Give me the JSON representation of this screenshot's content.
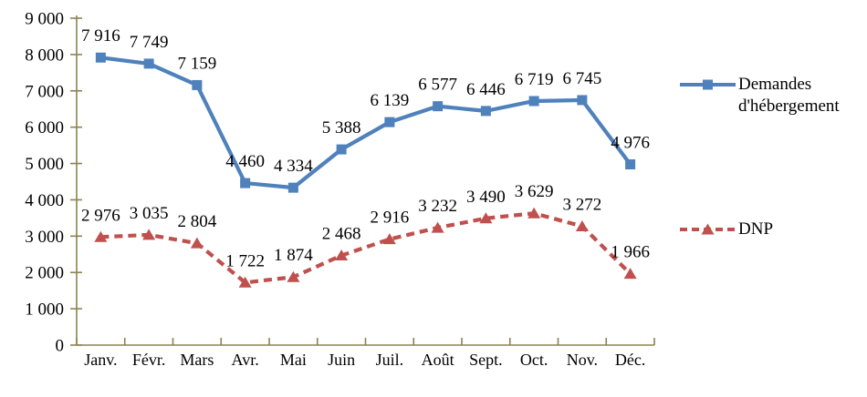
{
  "chart_data": {
    "type": "line",
    "title": "",
    "xlabel": "",
    "ylabel": "",
    "categories": [
      "Janv.",
      "Févr.",
      "Mars",
      "Avr.",
      "Mai",
      "Juin",
      "Juil.",
      "Août",
      "Sept.",
      "Oct.",
      "Nov.",
      "Déc."
    ],
    "series": [
      {
        "name": "Demandes d'hébergement",
        "legend_lines": [
          "Demandes",
          "d'hébergement"
        ],
        "values": [
          7916,
          7749,
          7159,
          4460,
          4334,
          5388,
          6139,
          6577,
          6446,
          6719,
          6745,
          4976
        ],
        "color": "#4F81BD",
        "marker": "square",
        "line_style": "solid"
      },
      {
        "name": "DNP",
        "legend_lines": [
          "DNP"
        ],
        "values": [
          2976,
          3035,
          2804,
          1722,
          1874,
          2468,
          2916,
          3232,
          3490,
          3629,
          3272,
          1966
        ],
        "color": "#C0504D",
        "marker": "triangle",
        "line_style": "dashed"
      }
    ],
    "ylim": [
      0,
      9000
    ],
    "y_tick_step": 1000,
    "y_tick_values": [
      0,
      1000,
      2000,
      3000,
      4000,
      5000,
      6000,
      7000,
      8000,
      9000
    ],
    "grid": false,
    "data_labels": true,
    "legend_position": "right",
    "axis_color": "#8C8350",
    "text_color": "#000000",
    "number_format": "space-thousands"
  }
}
